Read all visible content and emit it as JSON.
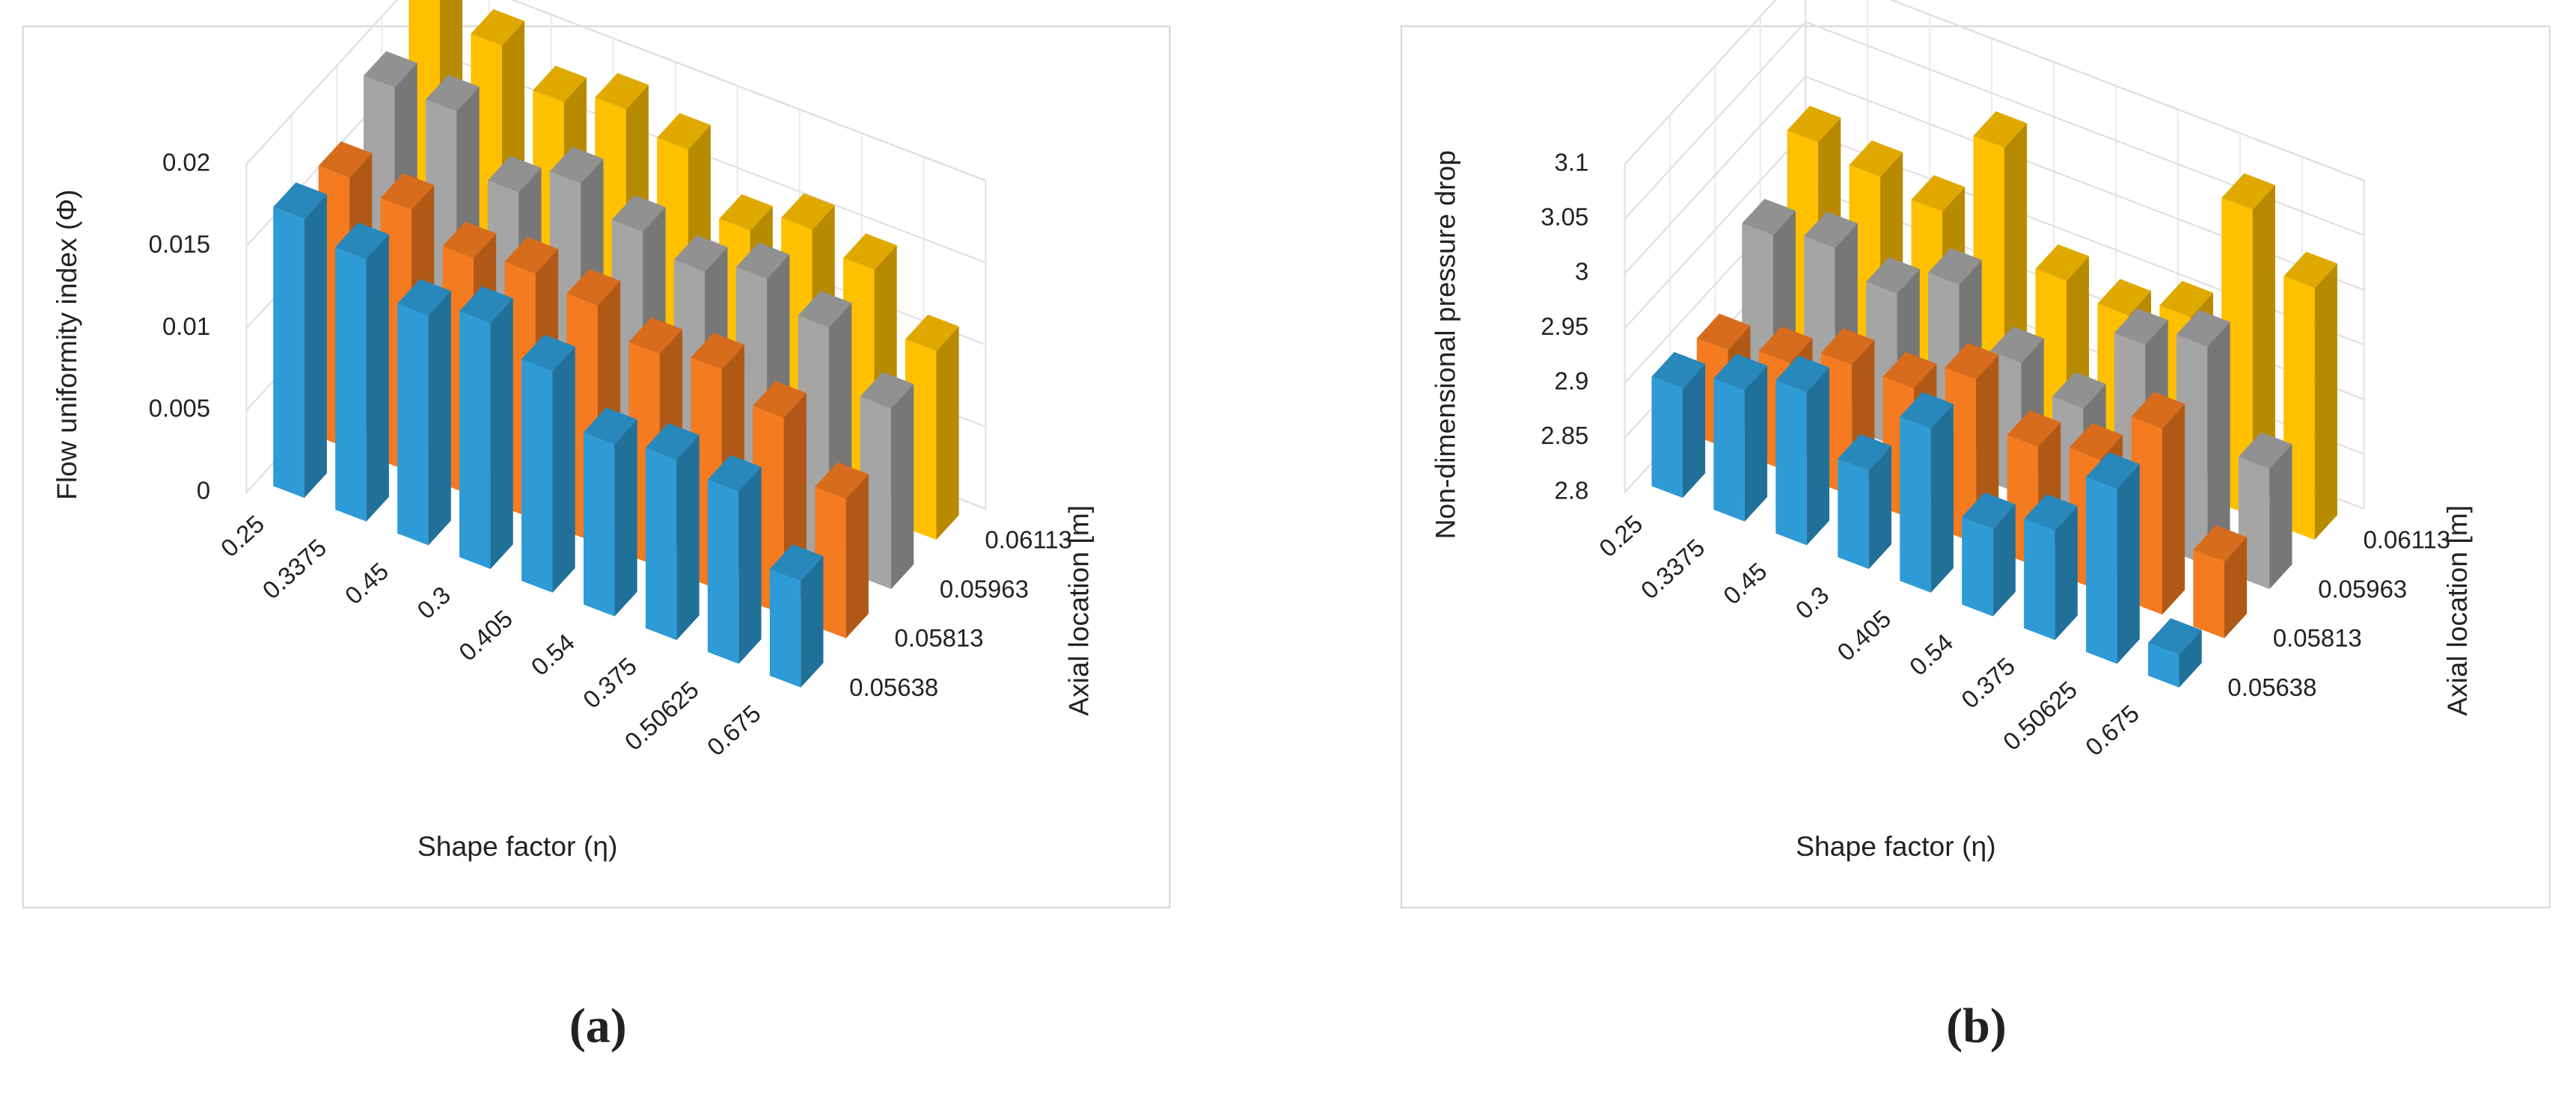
{
  "chart_data": [
    {
      "type": "bar3d",
      "caption": "(a)",
      "ylabel": "Flow uniformity index (Φ)",
      "xlabel": "Shape factor (η)",
      "zlabel": "Axial location [m]",
      "categories": [
        "0.25",
        "0.3375",
        "0.45",
        "0.3",
        "0.405",
        "0.54",
        "0.375",
        "0.50625",
        "0.675"
      ],
      "ylim": [
        0,
        0.02
      ],
      "yticks": [
        0,
        0.005,
        0.01,
        0.015,
        0.02
      ],
      "grid": true,
      "series": [
        {
          "name": "0.05638",
          "color": "#2e9bd6",
          "values": [
            0.017,
            0.016,
            0.014,
            0.015,
            0.0135,
            0.0105,
            0.011,
            0.0105,
            0.0065
          ]
        },
        {
          "name": "0.05813",
          "color": "#f47b20",
          "values": [
            0.0165,
            0.016,
            0.0145,
            0.015,
            0.0145,
            0.013,
            0.0135,
            0.012,
            0.0085
          ]
        },
        {
          "name": "0.05963",
          "color": "#a5a5a5",
          "values": [
            0.019,
            0.019,
            0.0155,
            0.0175,
            0.016,
            0.015,
            0.016,
            0.0145,
            0.011
          ]
        },
        {
          "name": "0.06113",
          "color": "#ffc000",
          "values": [
            0.0215,
            0.02,
            0.018,
            0.019,
            0.018,
            0.0145,
            0.016,
            0.015,
            0.0115
          ]
        }
      ]
    },
    {
      "type": "bar3d",
      "caption": "(b)",
      "ylabel": "Non-dimensional pressure drop",
      "xlabel": "Shape factor (η)",
      "zlabel": "Axial location [m]",
      "categories": [
        "0.25",
        "0.3375",
        "0.45",
        "0.3",
        "0.405",
        "0.54",
        "0.375",
        "0.50625",
        "0.675"
      ],
      "ylim": [
        2.8,
        3.1
      ],
      "yticks": [
        2.8,
        2.85,
        2.9,
        2.95,
        3,
        3.05,
        3.1
      ],
      "grid": true,
      "series": [
        {
          "name": "0.05638",
          "color": "#2e9bd6",
          "values": [
            2.9,
            2.92,
            2.94,
            2.89,
            2.95,
            2.88,
            2.9,
            2.96,
            2.83
          ]
        },
        {
          "name": "0.05813",
          "color": "#f47b20",
          "values": [
            2.89,
            2.9,
            2.92,
            2.92,
            2.95,
            2.91,
            2.92,
            2.97,
            2.87
          ]
        },
        {
          "name": "0.05963",
          "color": "#a5a5a5",
          "values": [
            2.95,
            2.96,
            2.94,
            2.97,
            2.92,
            2.9,
            2.98,
            3.0,
            2.91
          ]
        },
        {
          "name": "0.06113",
          "color": "#ffc000",
          "values": [
            2.99,
            2.98,
            2.97,
            3.05,
            2.95,
            2.94,
            2.96,
            3.08,
            3.03
          ]
        }
      ]
    }
  ]
}
